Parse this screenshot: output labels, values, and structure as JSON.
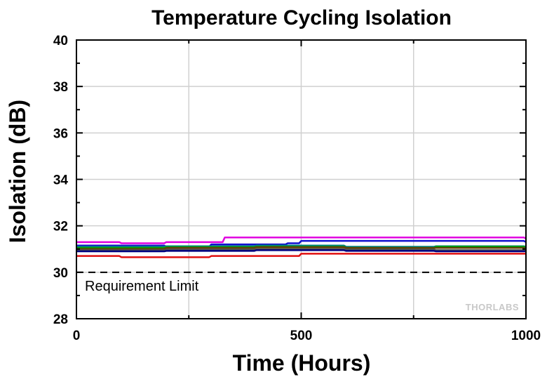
{
  "chart_data": {
    "type": "line",
    "title": "Temperature Cycling Isolation",
    "xlabel": "Time (Hours)",
    "ylabel": "Isolation (dB)",
    "xlim": [
      0,
      1000
    ],
    "ylim": [
      28,
      40
    ],
    "xticks": [
      0,
      500,
      1000
    ],
    "yticks": [
      28,
      30,
      32,
      34,
      36,
      38,
      40
    ],
    "grid": true,
    "series": [
      {
        "color": "#e000e0",
        "x": [
          0,
          100,
          200,
          320,
          330,
          500,
          700,
          1000
        ],
        "values": [
          31.3,
          31.25,
          31.3,
          31.3,
          31.5,
          31.5,
          31.5,
          31.45
        ]
      },
      {
        "color": "#1010d0",
        "x": [
          0,
          200,
          300,
          470,
          500,
          700,
          1000
        ],
        "values": [
          31.15,
          31.1,
          31.2,
          31.25,
          31.35,
          31.35,
          31.3
        ]
      },
      {
        "color": "#008080",
        "x": [
          0,
          200,
          400,
          600,
          800,
          1000
        ],
        "values": [
          31.1,
          31.12,
          31.15,
          31.1,
          31.12,
          31.1
        ]
      },
      {
        "color": "#00a000",
        "x": [
          0,
          200,
          400,
          600,
          800,
          1000
        ],
        "values": [
          31.05,
          31.08,
          31.1,
          31.05,
          31.1,
          31.05
        ]
      },
      {
        "color": "#604000",
        "x": [
          0,
          200,
          400,
          600,
          800,
          1000
        ],
        "values": [
          31.0,
          31.05,
          31.08,
          31.05,
          31.05,
          31.0
        ]
      },
      {
        "color": "#505050",
        "x": [
          0,
          200,
          400,
          600,
          800,
          1000
        ],
        "values": [
          30.95,
          30.98,
          31.0,
          30.98,
          30.95,
          30.95
        ]
      },
      {
        "color": "#000080",
        "x": [
          0,
          200,
          400,
          600,
          800,
          1000
        ],
        "values": [
          30.9,
          30.92,
          30.95,
          30.92,
          30.9,
          30.9
        ]
      },
      {
        "color": "#e01010",
        "x": [
          0,
          100,
          300,
          470,
          500,
          700,
          1000
        ],
        "values": [
          30.7,
          30.65,
          30.7,
          30.7,
          30.8,
          30.8,
          30.8
        ]
      }
    ],
    "reference_line": {
      "y": 30,
      "style": "dashed",
      "label": "Requirement Limit"
    },
    "watermark": "THORLABS"
  }
}
